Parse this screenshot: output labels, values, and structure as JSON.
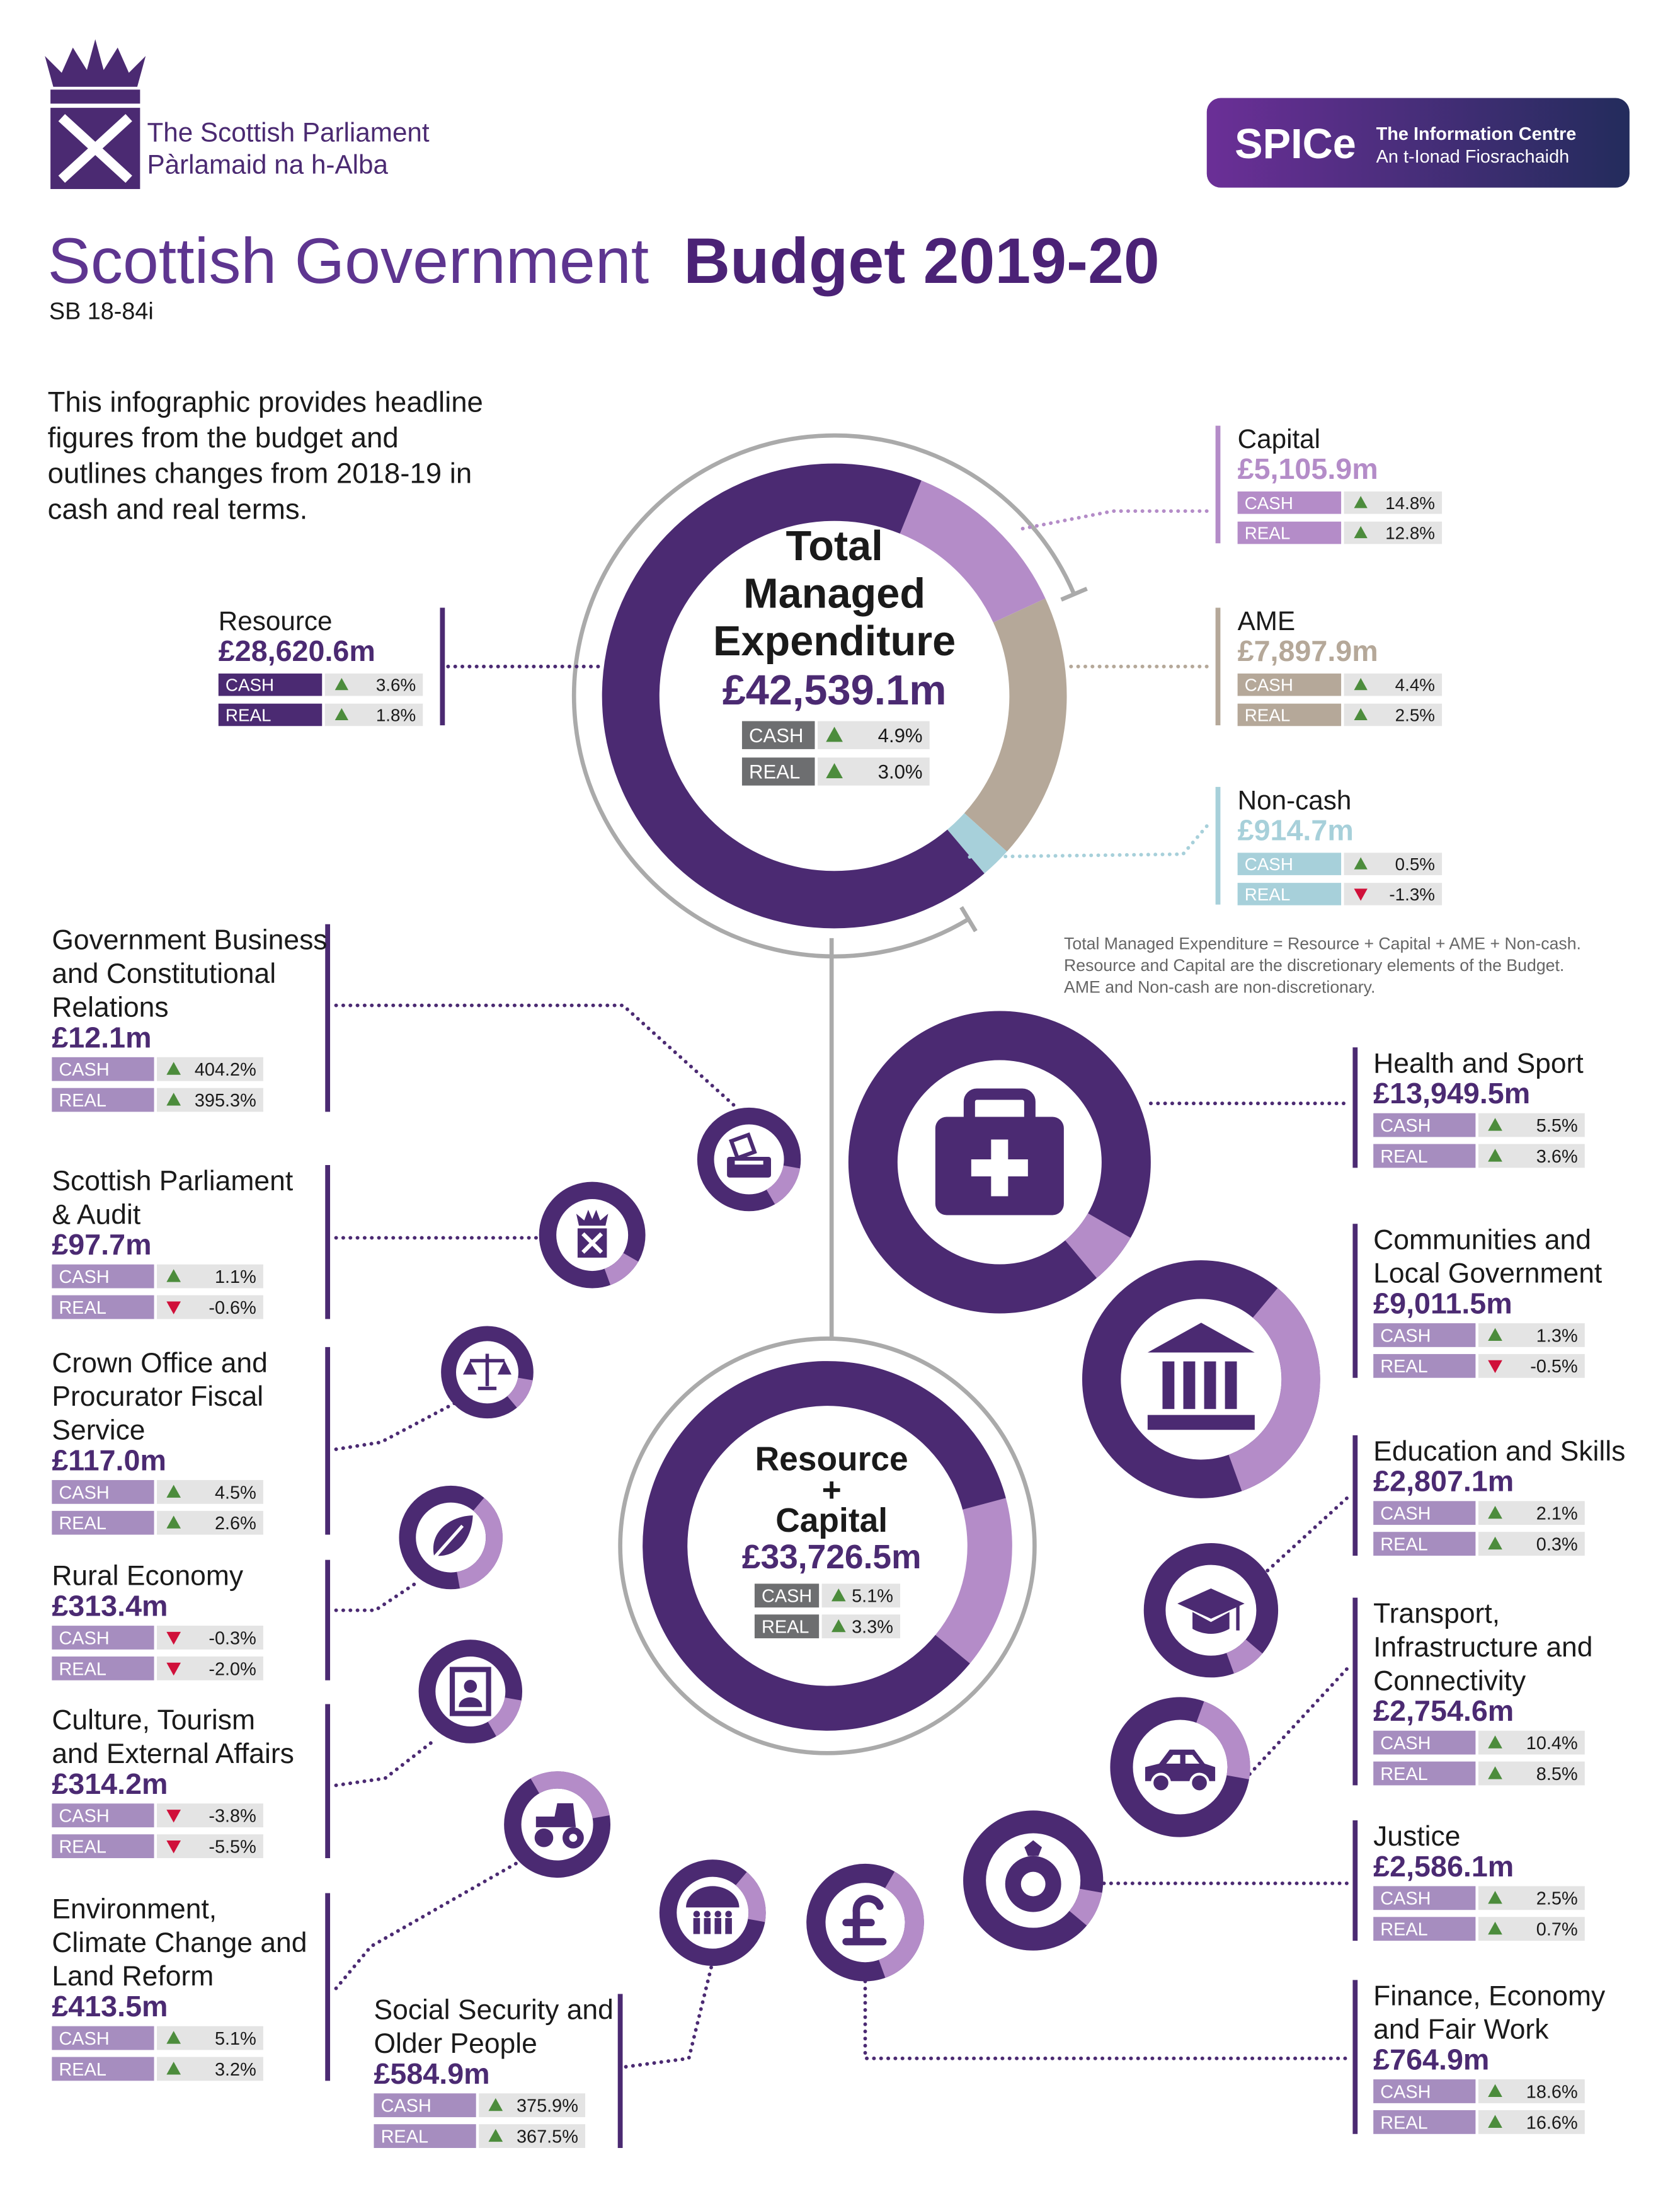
{
  "header": {
    "org_lines": [
      "The Scottish Parliament",
      "Pàrlamaid na h-Alba"
    ],
    "spice": {
      "name": "SPICe",
      "line1": "The Information Centre",
      "line2": "An t-Ionad Fiosrachaidh"
    },
    "title_light": "Scottish Government",
    "title_bold": "Budget 2019-20",
    "reference": "SB 18-84i"
  },
  "intro_lines": [
    "This infographic provides headline",
    "figures from the budget and",
    "outlines changes from 2018-19 in",
    "cash and real terms."
  ],
  "total": {
    "title_lines": [
      "Total",
      "Managed",
      "Expenditure"
    ],
    "amount": {
      "value": 42539.1,
      "label": "£42,539.1m"
    },
    "changes": [
      {
        "kind": "CASH",
        "value": 4.9,
        "label": "4.9%"
      },
      {
        "kind": "REAL",
        "value": 3.0,
        "label": "3.0%"
      }
    ]
  },
  "components": [
    {
      "name": "Resource",
      "color": "#4b2a72",
      "amount": {
        "value": 28620.6,
        "label": "£28,620.6m"
      },
      "changes": [
        {
          "kind": "CASH",
          "value": 3.6,
          "label": "3.6%"
        },
        {
          "kind": "REAL",
          "value": 1.8,
          "label": "1.8%"
        }
      ]
    },
    {
      "name": "Capital",
      "color": "#b48cc8",
      "amount": {
        "value": 5105.9,
        "label": "£5,105.9m"
      },
      "changes": [
        {
          "kind": "CASH",
          "value": 14.8,
          "label": "14.8%"
        },
        {
          "kind": "REAL",
          "value": 12.8,
          "label": "12.8%"
        }
      ]
    },
    {
      "name": "AME",
      "color": "#b5a899",
      "amount": {
        "value": 7897.9,
        "label": "£7,897.9m"
      },
      "changes": [
        {
          "kind": "CASH",
          "value": 4.4,
          "label": "4.4%"
        },
        {
          "kind": "REAL",
          "value": 2.5,
          "label": "2.5%"
        }
      ]
    },
    {
      "name": "Non-cash",
      "color": "#a7d0da",
      "amount": {
        "value": 914.7,
        "label": "£914.7m"
      },
      "changes": [
        {
          "kind": "CASH",
          "value": 0.5,
          "label": "0.5%"
        },
        {
          "kind": "REAL",
          "value": -1.3,
          "label": "-1.3%"
        }
      ]
    }
  ],
  "note_lines": [
    "Total Managed Expenditure = Resource + Capital + AME + Non-cash.",
    "Resource and Capital are the discretionary elements of the Budget.",
    "AME and Non-cash are non-discretionary."
  ],
  "resource_capital": {
    "title_lines": [
      "Resource",
      "+",
      "Capital"
    ],
    "amount": {
      "value": 33726.5,
      "label": "£33,726.5m"
    },
    "changes": [
      {
        "kind": "CASH",
        "value": 5.1,
        "label": "5.1%"
      },
      {
        "kind": "REAL",
        "value": 3.3,
        "label": "3.3%"
      }
    ]
  },
  "portfolios": [
    {
      "name_lines": [
        "Government Business",
        "and Constitutional",
        "Relations"
      ],
      "amount": {
        "value": 12.1,
        "label": "£12.1m"
      },
      "changes": [
        {
          "kind": "CASH",
          "value": 404.2,
          "label": "404.2%"
        },
        {
          "kind": "REAL",
          "value": 395.3,
          "label": "395.3%"
        }
      ]
    },
    {
      "name_lines": [
        "Scottish Parliament",
        "& Audit"
      ],
      "amount": {
        "value": 97.7,
        "label": "£97.7m"
      },
      "changes": [
        {
          "kind": "CASH",
          "value": 1.1,
          "label": "1.1%"
        },
        {
          "kind": "REAL",
          "value": -0.6,
          "label": "-0.6%"
        }
      ]
    },
    {
      "name_lines": [
        "Crown Office and",
        "Procurator Fiscal",
        "Service"
      ],
      "amount": {
        "value": 117.0,
        "label": "£117.0m"
      },
      "changes": [
        {
          "kind": "CASH",
          "value": 4.5,
          "label": "4.5%"
        },
        {
          "kind": "REAL",
          "value": 2.6,
          "label": "2.6%"
        }
      ]
    },
    {
      "name_lines": [
        "Rural Economy"
      ],
      "amount": {
        "value": 313.4,
        "label": "£313.4m"
      },
      "changes": [
        {
          "kind": "CASH",
          "value": -0.3,
          "label": "-0.3%"
        },
        {
          "kind": "REAL",
          "value": -2.0,
          "label": "-2.0%"
        }
      ]
    },
    {
      "name_lines": [
        "Culture, Tourism",
        "and External Affairs"
      ],
      "amount": {
        "value": 314.2,
        "label": "£314.2m"
      },
      "changes": [
        {
          "kind": "CASH",
          "value": -3.8,
          "label": "-3.8%"
        },
        {
          "kind": "REAL",
          "value": -5.5,
          "label": "-5.5%"
        }
      ]
    },
    {
      "name_lines": [
        "Environment,",
        "Climate Change and",
        "Land Reform"
      ],
      "amount": {
        "value": 413.5,
        "label": "£413.5m"
      },
      "changes": [
        {
          "kind": "CASH",
          "value": 5.1,
          "label": "5.1%"
        },
        {
          "kind": "REAL",
          "value": 3.2,
          "label": "3.2%"
        }
      ]
    },
    {
      "name_lines": [
        "Social Security and",
        "Older People"
      ],
      "amount": {
        "value": 584.9,
        "label": "£584.9m"
      },
      "changes": [
        {
          "kind": "CASH",
          "value": 375.9,
          "label": "375.9%"
        },
        {
          "kind": "REAL",
          "value": 367.5,
          "label": "367.5%"
        }
      ]
    },
    {
      "name_lines": [
        "Health and Sport"
      ],
      "amount": {
        "value": 13949.5,
        "label": "£13,949.5m"
      },
      "changes": [
        {
          "kind": "CASH",
          "value": 5.5,
          "label": "5.5%"
        },
        {
          "kind": "REAL",
          "value": 3.6,
          "label": "3.6%"
        }
      ]
    },
    {
      "name_lines": [
        "Communities and",
        "Local Government"
      ],
      "amount": {
        "value": 9011.5,
        "label": "£9,011.5m"
      },
      "changes": [
        {
          "kind": "CASH",
          "value": 1.3,
          "label": "1.3%"
        },
        {
          "kind": "REAL",
          "value": -0.5,
          "label": "-0.5%"
        }
      ]
    },
    {
      "name_lines": [
        "Education and Skills"
      ],
      "amount": {
        "value": 2807.1,
        "label": "£2,807.1m"
      },
      "changes": [
        {
          "kind": "CASH",
          "value": 2.1,
          "label": "2.1%"
        },
        {
          "kind": "REAL",
          "value": 0.3,
          "label": "0.3%"
        }
      ]
    },
    {
      "name_lines": [
        "Transport,",
        "Infrastructure and",
        "Connectivity"
      ],
      "amount": {
        "value": 2754.6,
        "label": "£2,754.6m"
      },
      "changes": [
        {
          "kind": "CASH",
          "value": 10.4,
          "label": "10.4%"
        },
        {
          "kind": "REAL",
          "value": 8.5,
          "label": "8.5%"
        }
      ]
    },
    {
      "name_lines": [
        "Justice"
      ],
      "amount": {
        "value": 2586.1,
        "label": "£2,586.1m"
      },
      "changes": [
        {
          "kind": "CASH",
          "value": 2.5,
          "label": "2.5%"
        },
        {
          "kind": "REAL",
          "value": 0.7,
          "label": "0.7%"
        }
      ]
    },
    {
      "name_lines": [
        "Finance, Economy",
        "and Fair Work"
      ],
      "amount": {
        "value": 764.9,
        "label": "£764.9m"
      },
      "changes": [
        {
          "kind": "CASH",
          "value": 18.6,
          "label": "18.6%"
        },
        {
          "kind": "REAL",
          "value": 16.6,
          "label": "16.6%"
        }
      ]
    }
  ]
}
